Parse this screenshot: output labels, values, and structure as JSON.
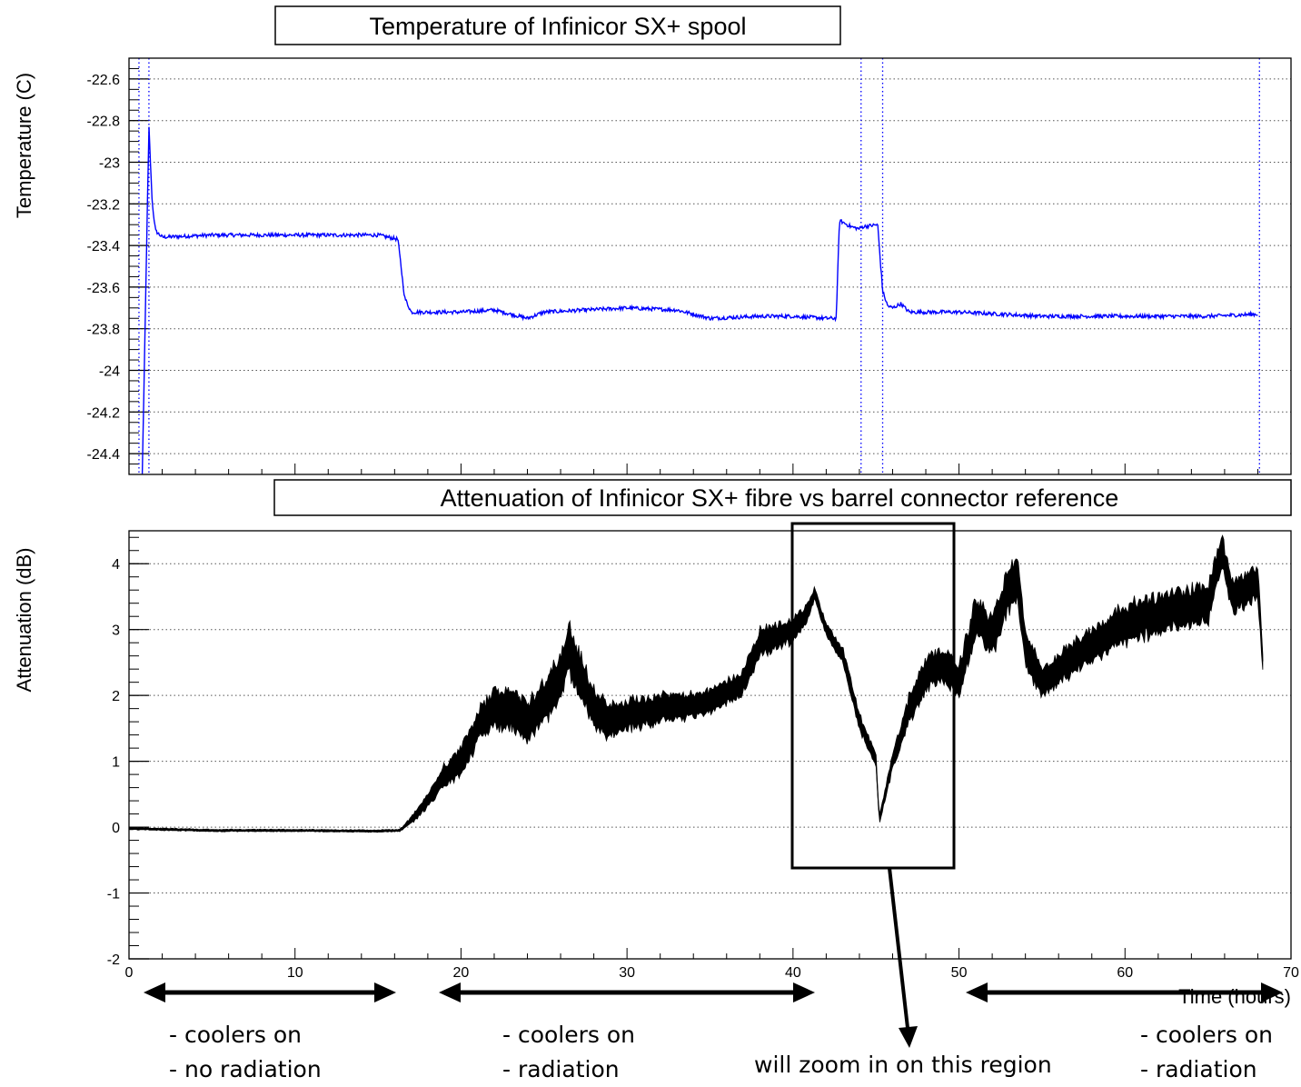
{
  "chart_data": [
    {
      "type": "line",
      "title": "Temperature of Infinicor SX+ spool",
      "xlabel": "",
      "ylabel": "Temperature (C)",
      "xlim": [
        0,
        70
      ],
      "ylim": [
        -24.5,
        -22.5
      ],
      "yticks": [
        "-22.6",
        "-22.8",
        "-23",
        "-23.2",
        "-23.4",
        "-23.6",
        "-23.8",
        "-24",
        "-24.2",
        "-24.4"
      ],
      "grid": true,
      "series": [
        {
          "color": "#0000ff",
          "x": [
            0.8,
            1.2,
            1.4,
            1.6,
            2,
            5,
            10,
            15,
            16.2,
            16.6,
            17,
            20,
            22,
            24,
            25,
            30,
            33,
            35,
            38,
            40,
            42,
            42.6,
            42.8,
            43.5,
            44,
            44.2,
            45.1,
            45.4,
            45.7,
            46,
            46.5,
            47,
            50,
            55,
            60,
            65,
            68
          ],
          "y": [
            -24.5,
            -22.83,
            -23.2,
            -23.33,
            -23.36,
            -23.35,
            -23.35,
            -23.35,
            -23.37,
            -23.65,
            -23.72,
            -23.72,
            -23.71,
            -23.75,
            -23.72,
            -23.7,
            -23.71,
            -23.75,
            -23.74,
            -23.74,
            -23.75,
            -23.75,
            -23.28,
            -23.31,
            -23.32,
            -23.31,
            -23.3,
            -23.62,
            -23.69,
            -23.7,
            -23.68,
            -23.72,
            -23.72,
            -23.74,
            -23.74,
            -23.74,
            -23.73
          ]
        }
      ],
      "vertical_dotted_lines_x": [
        0.6,
        1.2,
        44.1,
        45.4,
        68.1
      ]
    },
    {
      "type": "scatter",
      "title": "Attenuation of Infinicor SX+ fibre vs barrel connector reference",
      "xlabel": "Time (hours)",
      "ylabel": "Attenuation (dB)",
      "xlim": [
        0,
        70
      ],
      "ylim": [
        -2,
        4.5
      ],
      "xticks": [
        "0",
        "10",
        "20",
        "30",
        "40",
        "50",
        "60",
        "70"
      ],
      "yticks": [
        "-2",
        "-1",
        "0",
        "1",
        "2",
        "3",
        "4"
      ],
      "grid": true,
      "series": [
        {
          "color": "#000000",
          "x": [
            0,
            5,
            10,
            15,
            16.3,
            17,
            18,
            19,
            20,
            21,
            22,
            23,
            24,
            25,
            26,
            26.5,
            27,
            28,
            29,
            30,
            32,
            35,
            37,
            38,
            40,
            41,
            41.3,
            42,
            43,
            44,
            45,
            45.2,
            46,
            47,
            48,
            49,
            50,
            51,
            52,
            52.8,
            53.5,
            54,
            55,
            57,
            60,
            63,
            65,
            65.8,
            66.5,
            68,
            68.3
          ],
          "y": [
            -0.02,
            -0.05,
            -0.05,
            -0.06,
            -0.05,
            0.1,
            0.4,
            0.8,
            1.0,
            1.5,
            1.8,
            1.8,
            1.6,
            1.9,
            2.3,
            2.7,
            2.4,
            1.8,
            1.6,
            1.7,
            1.8,
            1.9,
            2.2,
            2.8,
            3.0,
            3.3,
            3.55,
            3.0,
            2.6,
            1.6,
            1.0,
            0.1,
            1.0,
            1.8,
            2.3,
            2.5,
            2.2,
            3.2,
            2.9,
            3.5,
            3.8,
            2.7,
            2.2,
            2.6,
            3.1,
            3.3,
            3.4,
            4.2,
            3.5,
            3.7,
            2.5
          ],
          "spread": [
            0.02,
            0.02,
            0.02,
            0.02,
            0.02,
            0.06,
            0.12,
            0.2,
            0.25,
            0.3,
            0.35,
            0.35,
            0.35,
            0.4,
            0.4,
            0.45,
            0.4,
            0.35,
            0.3,
            0.28,
            0.25,
            0.22,
            0.22,
            0.25,
            0.22,
            0.15,
            0.1,
            0.12,
            0.15,
            0.15,
            0.12,
            0.06,
            0.15,
            0.25,
            0.3,
            0.3,
            0.3,
            0.35,
            0.35,
            0.4,
            0.4,
            0.35,
            0.25,
            0.3,
            0.35,
            0.35,
            0.35,
            0.3,
            0.3,
            0.3,
            0.2
          ]
        }
      ]
    }
  ],
  "annotations": {
    "zoom_label": "will zoom in on this region",
    "segments": [
      {
        "line1": "- coolers on",
        "line2": "- no radiation"
      },
      {
        "line1": "- coolers on",
        "line2": "- radiation"
      },
      {
        "line1": "- coolers on",
        "line2": "- radiation"
      }
    ]
  }
}
